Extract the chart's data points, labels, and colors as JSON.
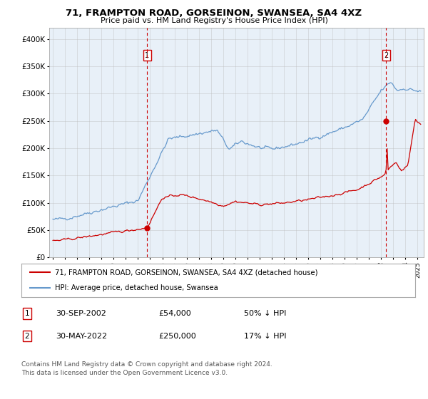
{
  "title": "71, FRAMPTON ROAD, GORSEINON, SWANSEA, SA4 4XZ",
  "subtitle": "Price paid vs. HM Land Registry's House Price Index (HPI)",
  "plot_bg_color": "#e8f0f8",
  "red_line_color": "#cc0000",
  "blue_line_color": "#6699cc",
  "marker_color": "#cc0000",
  "dashed_line_color": "#cc0000",
  "ylim": [
    0,
    420000
  ],
  "yticks": [
    0,
    50000,
    100000,
    150000,
    200000,
    250000,
    300000,
    350000,
    400000
  ],
  "ytick_labels": [
    "£0",
    "£50K",
    "£100K",
    "£150K",
    "£200K",
    "£250K",
    "£300K",
    "£350K",
    "£400K"
  ],
  "sale1_date_num": 2002.75,
  "sale1_price": 54000,
  "sale1_label": "1",
  "sale2_date_num": 2022.42,
  "sale2_price": 250000,
  "sale2_label": "2",
  "legend_red_label": "71, FRAMPTON ROAD, GORSEINON, SWANSEA, SA4 4XZ (detached house)",
  "legend_blue_label": "HPI: Average price, detached house, Swansea",
  "table_row1": [
    "1",
    "30-SEP-2002",
    "£54,000",
    "50% ↓ HPI"
  ],
  "table_row2": [
    "2",
    "30-MAY-2022",
    "£250,000",
    "17% ↓ HPI"
  ],
  "footer": "Contains HM Land Registry data © Crown copyright and database right 2024.\nThis data is licensed under the Open Government Licence v3.0."
}
